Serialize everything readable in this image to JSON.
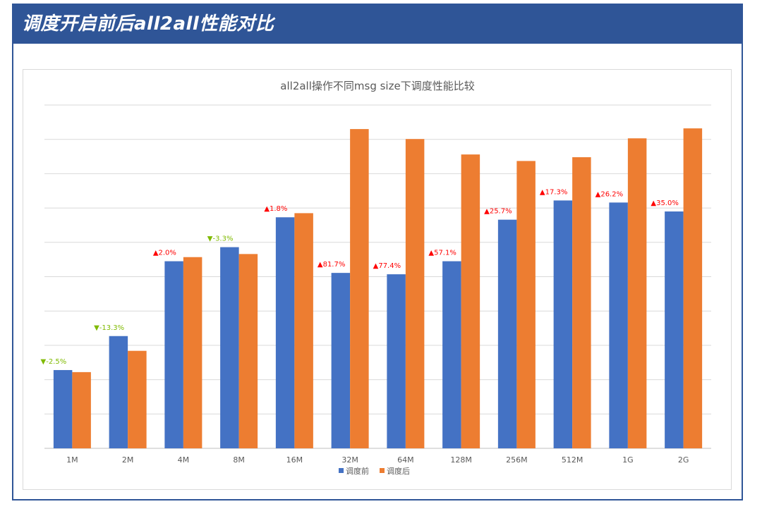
{
  "page": {
    "header_title": "调度开启前后all2all性能对比"
  },
  "colors": {
    "header_bg": "#2f5597",
    "series_before": "#4472c4",
    "series_after": "#ed7d31",
    "label_up": "#ff0000",
    "label_down": "#7fba00",
    "gridline": "#d9d9d9"
  },
  "chart_data": {
    "type": "bar",
    "title": "all2all操作不同msg size下调度性能比较",
    "xlabel": "",
    "ylabel": "",
    "categories": [
      "1M",
      "2M",
      "4M",
      "8M",
      "16M",
      "32M",
      "64M",
      "128M",
      "256M",
      "512M",
      "1G",
      "2G"
    ],
    "series": [
      {
        "name": "调度前",
        "color": "#4472c4",
        "values": [
          2.28,
          3.27,
          5.45,
          5.86,
          6.73,
          5.11,
          5.07,
          5.45,
          6.66,
          7.22,
          7.16,
          6.9
        ]
      },
      {
        "name": "调度后",
        "color": "#ed7d31",
        "values": [
          2.22,
          2.84,
          5.57,
          5.66,
          6.85,
          9.3,
          9.01,
          8.56,
          8.37,
          8.48,
          9.03,
          9.32
        ]
      }
    ],
    "annotations": [
      {
        "text": "▼-2.5%",
        "direction": "down"
      },
      {
        "text": "▼-13.3%",
        "direction": "down"
      },
      {
        "text": "▲2.0%",
        "direction": "up"
      },
      {
        "text": "▼-3.3%",
        "direction": "down"
      },
      {
        "text": "▲1.8%",
        "direction": "up"
      },
      {
        "text": "▲81.7%",
        "direction": "up"
      },
      {
        "text": "▲77.4%",
        "direction": "up"
      },
      {
        "text": "▲57.1%",
        "direction": "up"
      },
      {
        "text": "▲25.7%",
        "direction": "up"
      },
      {
        "text": "▲17.3%",
        "direction": "up"
      },
      {
        "text": "▲26.2%",
        "direction": "up"
      },
      {
        "text": "▲35.0%",
        "direction": "up"
      }
    ],
    "ylim": [
      0,
      10
    ],
    "ytick_step": 1,
    "y_tick_labels_shown": false,
    "grid": true,
    "legend_position": "bottom-center"
  }
}
